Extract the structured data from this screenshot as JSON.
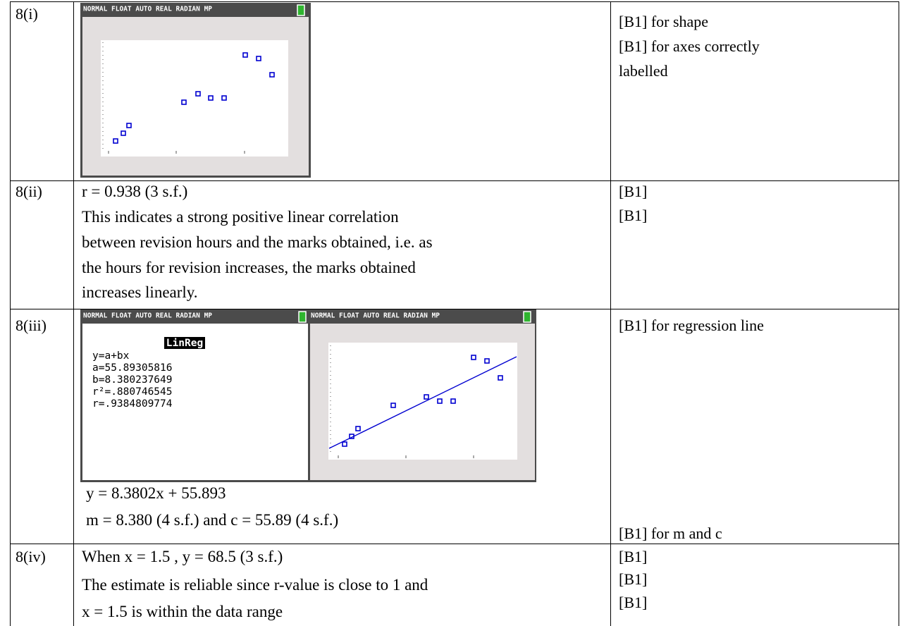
{
  "rows": [
    {
      "label": "8(i)",
      "screens": [
        {
          "status": "NORMAL FLOAT AUTO REAL RADIAN MP"
        }
      ],
      "marks": [
        "[B1] for shape",
        "[B1] for axes correctly",
        "labelled"
      ]
    },
    {
      "label": "8(ii)",
      "lines": [
        "r = 0.938  (3 s.f.)",
        "This indicates a strong positive linear correlation",
        "between revision hours and the marks obtained, i.e. as",
        "the hours for revision increases, the marks obtained",
        "increases linearly."
      ],
      "marks": [
        "[B1]",
        "[B1]"
      ]
    },
    {
      "label": "8(iii)",
      "screens": [
        {
          "status": "NORMAL FLOAT AUTO REAL RADIAN MP",
          "title": "LinReg",
          "lines": [
            "y=a+bx",
            "a=55.89305816",
            "b=8.380237649",
            "r²=.880746545",
            "r=.9384809774"
          ]
        },
        {
          "status": "NORMAL FLOAT AUTO REAL RADIAN MP"
        }
      ],
      "lines": [
        "y = 8.3802x + 55.893",
        "m = 8.380  (4 s.f.)  and  c = 55.89  (4 s.f.)"
      ],
      "marks": [
        "[B1] for regression line",
        "[B1] for m and c"
      ]
    },
    {
      "label": "8(iv)",
      "lines": [
        "When  x = 1.5 ,  y = 68.5  (3 s.f.)",
        "The estimate is reliable since r-value is close to 1 and",
        "x = 1.5  is within the data range"
      ],
      "marks": [
        "[B1]",
        "[B1]",
        "[B1]"
      ]
    }
  ]
}
